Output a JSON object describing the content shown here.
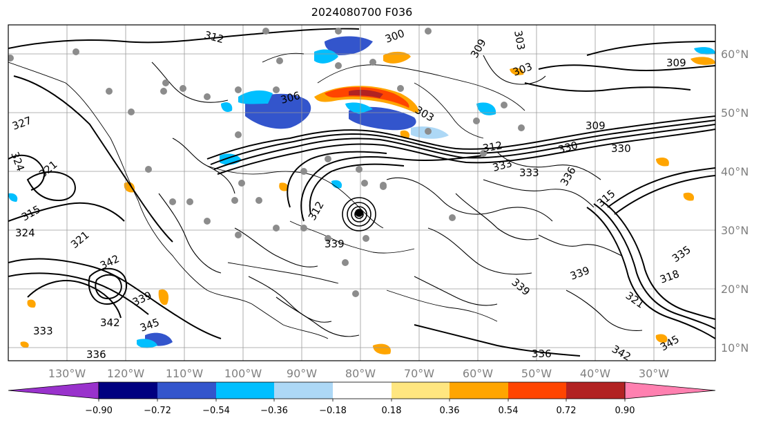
{
  "title": "2024080700 F036",
  "map": {
    "longitude_labels": [
      "130°W",
      "120°W",
      "110°W",
      "100°W",
      "90°W",
      "80°W",
      "70°W",
      "60°W",
      "50°W",
      "40°W",
      "30°W"
    ],
    "latitude_labels": [
      "60°N",
      "50°N",
      "40°N",
      "30°N",
      "20°N",
      "10°N"
    ],
    "contour_labels": [
      "312",
      "300",
      "303",
      "306",
      "303",
      "309",
      "312",
      "309",
      "330",
      "330",
      "333",
      "333",
      "336",
      "327",
      "324",
      "321",
      "315",
      "324",
      "321",
      "342",
      "339",
      "342",
      "333",
      "336",
      "339",
      "339",
      "345",
      "336",
      "342",
      "345",
      "318",
      "321",
      "315",
      "335",
      "312",
      "339",
      "303",
      "309"
    ]
  },
  "colorbar": {
    "ticks": [
      "−0.90",
      "−0.72",
      "−0.54",
      "−0.36",
      "−0.18",
      "0.18",
      "0.36",
      "0.54",
      "0.72",
      "0.90"
    ],
    "colors": [
      "#9932cc",
      "#000080",
      "#3355cc",
      "#00bfff",
      "#add8f6",
      "#ffffff",
      "#ffe680",
      "#ffa500",
      "#ff4500",
      "#b22222",
      "#ff80b0"
    ]
  }
}
